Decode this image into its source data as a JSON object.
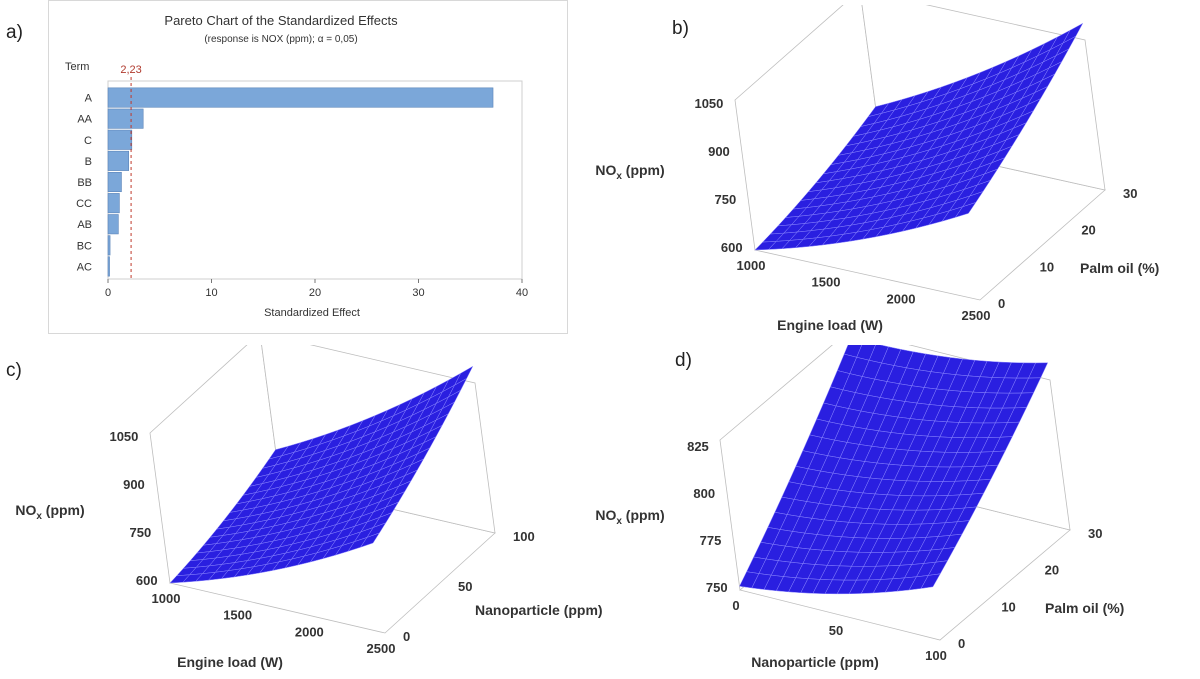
{
  "panel_labels": [
    "a)",
    "b)",
    "c)",
    "d)"
  ],
  "chart_data": [
    {
      "id": "a",
      "type": "bar",
      "orientation": "horizontal",
      "title": "Pareto Chart of the Standardized Effects",
      "subtitle": "(response is NOX (ppm); α = 0,05)",
      "ylabel": "Term",
      "xlabel": "Standardized Effect",
      "categories": [
        "A",
        "AA",
        "C",
        "B",
        "BB",
        "CC",
        "AB",
        "BC",
        "AC"
      ],
      "values": [
        37.2,
        3.4,
        2.3,
        2.0,
        1.3,
        1.1,
        1.0,
        0.2,
        0.15
      ],
      "xticks": [
        "0",
        "10",
        "20",
        "30",
        "40"
      ],
      "xlim": [
        0,
        40
      ],
      "reference_line": {
        "value": 2.23,
        "label": "2,23"
      },
      "bar_color": "#7ba7d9",
      "grid": false
    },
    {
      "id": "b",
      "type": "surface",
      "zlabel": "NOx (ppm)",
      "xlabel": "Engine load (W)",
      "ylabel": "Palm oil (%)",
      "x_ticks": [
        "1000",
        "1500",
        "2000",
        "2500"
      ],
      "y_ticks": [
        "0",
        "10",
        "20",
        "30"
      ],
      "z_ticks": [
        "600",
        "750",
        "900",
        "1050"
      ],
      "xlim": [
        1000,
        2500
      ],
      "ylim": [
        0,
        30
      ],
      "zlim": [
        600,
        1050
      ],
      "surface_color": "#2a1fe0",
      "corner_values": {
        "x_min_y_min": 600,
        "x_max_y_min": 860,
        "x_min_y_max": 700,
        "x_max_y_max": 1100
      }
    },
    {
      "id": "c",
      "type": "surface",
      "zlabel": "NOx (ppm)",
      "xlabel": "Engine load (W)",
      "ylabel": "Nanoparticle (ppm)",
      "x_ticks": [
        "1000",
        "1500",
        "2000",
        "2500"
      ],
      "y_ticks": [
        "0",
        "50",
        "100"
      ],
      "z_ticks": [
        "600",
        "750",
        "900",
        "1050"
      ],
      "xlim": [
        1000,
        2500
      ],
      "ylim": [
        0,
        100
      ],
      "zlim": [
        600,
        1050
      ],
      "surface_color": "#2a1fe0",
      "corner_values": {
        "x_min_y_min": 600,
        "x_max_y_min": 870,
        "x_min_y_max": 700,
        "x_max_y_max": 1100
      }
    },
    {
      "id": "d",
      "type": "surface",
      "zlabel": "NOx (ppm)",
      "xlabel": "Nanoparticle (ppm)",
      "ylabel": "Palm oil (%)",
      "x_ticks": [
        "0",
        "50",
        "100"
      ],
      "y_ticks": [
        "0",
        "10",
        "20",
        "30"
      ],
      "z_ticks": [
        "750",
        "775",
        "800",
        "825"
      ],
      "xlim": [
        0,
        100
      ],
      "ylim": [
        0,
        30
      ],
      "zlim": [
        750,
        825
      ],
      "surface_color": "#2a1fe0",
      "corner_values": {
        "x_min_y_min": 752,
        "x_max_y_min": 778,
        "x_min_y_max": 825,
        "x_max_y_max": 838
      }
    }
  ]
}
